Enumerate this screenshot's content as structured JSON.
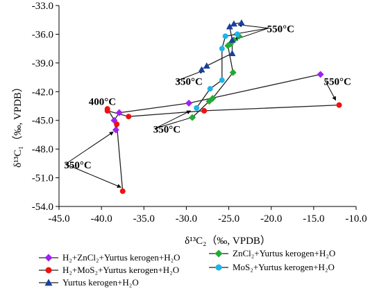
{
  "chart_data": {
    "type": "scatter",
    "title": "",
    "xlabel": "δ¹³C₂（‰, VPDB）",
    "ylabel": "δ¹³C₁（‰, VPDB）",
    "xlim": [
      -45.0,
      -10.0
    ],
    "ylim": [
      -54.0,
      -33.0
    ],
    "x_ticks": [
      "-45.0",
      "-40.0",
      "-35.0",
      "-30.0",
      "-25.0",
      "-20.0",
      "-15.0",
      "-10.0"
    ],
    "y_ticks": [
      "-33.0",
      "-36.0",
      "-39.0",
      "-42.0",
      "-45.0",
      "-48.0",
      "-51.0",
      "-54.0"
    ],
    "grid": false,
    "legend_position": "bottom",
    "series": [
      {
        "name": "H₂+ZnCl₂+Yurtus kerogen+H₂O",
        "color": "#a020f0",
        "marker": "diamond",
        "points": [
          [
            -38.3,
            -46.0
          ],
          [
            -38.5,
            -45.0
          ],
          [
            -37.9,
            -44.2
          ],
          [
            -29.7,
            -43.2
          ],
          [
            -14.2,
            -40.2
          ]
        ]
      },
      {
        "name": "ZnCl₂+Yurtus kerogen+H₂O",
        "color": "#22aa33",
        "marker": "diamond",
        "points": [
          [
            -29.3,
            -44.7
          ],
          [
            -27.3,
            -43.0
          ],
          [
            -26.9,
            -42.7
          ],
          [
            -24.5,
            -40.0
          ],
          [
            -25.1,
            -37.2
          ],
          [
            -24.8,
            -37.0
          ],
          [
            -24.4,
            -36.6
          ],
          [
            -23.8,
            -36.2
          ]
        ]
      },
      {
        "name": "H₂+MoS₂+Yurtus kerogen+H₂O",
        "color": "#ee1111",
        "marker": "circle",
        "points": [
          [
            -37.5,
            -52.4
          ],
          [
            -38.2,
            -45.4
          ],
          [
            -39.3,
            -43.8
          ],
          [
            -39.3,
            -44.0
          ],
          [
            -36.8,
            -44.6
          ],
          [
            -27.9,
            -44.0
          ],
          [
            -12.0,
            -43.4
          ]
        ]
      },
      {
        "name": "MoS₂+Yurtus kerogen+H₂O",
        "color": "#1eb4e8",
        "marker": "circle",
        "points": [
          [
            -28.8,
            -43.7
          ],
          [
            -27.2,
            -41.7
          ],
          [
            -25.8,
            -40.8
          ],
          [
            -25.8,
            -37.5
          ],
          [
            -25.4,
            -36.2
          ],
          [
            -24.0,
            -36.0
          ]
        ]
      },
      {
        "name": "Yurtus kerogen+H₂O",
        "color": "#1a3fa0",
        "marker": "triangle",
        "points": [
          [
            -28.2,
            -39.7
          ],
          [
            -27.6,
            -39.3
          ],
          [
            -24.6,
            -38.0
          ],
          [
            -24.6,
            -36.6
          ],
          [
            -24.9,
            -35.2
          ],
          [
            -24.4,
            -34.9
          ],
          [
            -23.5,
            -34.8
          ]
        ]
      }
    ],
    "annotations": [
      {
        "text": "550°C",
        "pos": [
          -20.5,
          -35.8
        ],
        "arrow_targets": [
          [
            -23.9,
            -35.0
          ],
          [
            -24.4,
            -36.0
          ],
          [
            -24.4,
            -36.6
          ]
        ]
      },
      {
        "text": "550°C",
        "pos": [
          -13.8,
          -41.3
        ],
        "arrow_targets": [
          [
            -12.4,
            -42.9
          ]
        ]
      },
      {
        "text": "400°C",
        "pos": [
          -41.5,
          -43.4
        ],
        "arrow_targets": []
      },
      {
        "text": "350°C",
        "pos": [
          -31.3,
          -41.3
        ],
        "arrow_targets": [
          [
            -28.0,
            -39.8
          ]
        ]
      },
      {
        "text": "350°C",
        "pos": [
          -33.9,
          -46.3
        ],
        "arrow_targets": [
          [
            -29.5,
            -44.0
          ],
          [
            -29.0,
            -44.6
          ]
        ]
      },
      {
        "text": "350°C",
        "pos": [
          -44.4,
          -50.0
        ],
        "arrow_targets": [
          [
            -38.6,
            -46.2
          ],
          [
            -37.7,
            -52.0
          ]
        ]
      }
    ]
  }
}
